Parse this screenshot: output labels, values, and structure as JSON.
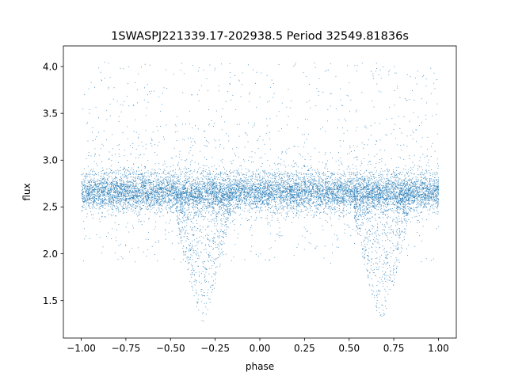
{
  "chart_data": {
    "type": "scatter",
    "title": "1SWASPJ221339.17-202938.5 Period 32549.81836s",
    "xlabel": "phase",
    "ylabel": "flux",
    "xlim": [
      -1.1,
      1.1
    ],
    "ylim": [
      1.1,
      4.22
    ],
    "x_ticks": [
      -1.0,
      -0.75,
      -0.5,
      -0.25,
      0.0,
      0.25,
      0.5,
      0.75,
      1.0
    ],
    "x_tick_labels": [
      "−1.00",
      "−0.75",
      "−0.50",
      "−0.25",
      "0.00",
      "0.25",
      "0.50",
      "0.75",
      "1.00"
    ],
    "y_ticks": [
      1.5,
      2.0,
      2.5,
      3.0,
      3.5,
      4.0
    ],
    "y_tick_labels": [
      "1.5",
      "2.0",
      "2.5",
      "3.0",
      "3.5",
      "4.0"
    ],
    "grid": false,
    "marker_color": "#1f77b4",
    "series": [
      {
        "phase_range": [
          -1.0,
          1.0
        ],
        "baseline_flux": 2.66,
        "baseline_spread": [
          2.45,
          2.85
        ],
        "scatter_flux_range": [
          1.25,
          4.05
        ],
        "eclipse_centers": [
          -0.32,
          0.68
        ],
        "eclipse_min_flux": 1.27,
        "eclipse_width": 0.18
      }
    ]
  }
}
